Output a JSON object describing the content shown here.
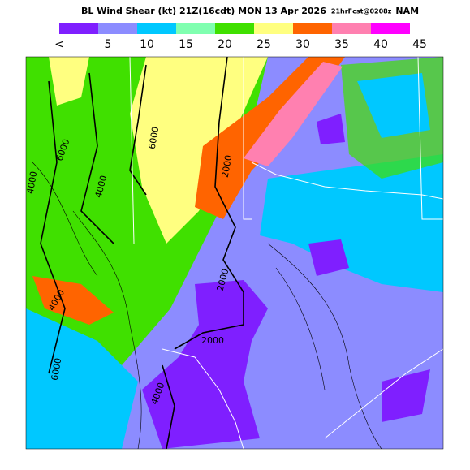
{
  "header": {
    "title": "BL Wind Shear (kt) 21Z(16cdt) MON 13 Apr 2026",
    "forecast": "21hrFcst@0208z",
    "model": "NAM"
  },
  "color_bar": {
    "colors": [
      "#7f1fff",
      "#8c8cff",
      "#00c8ff",
      "#80ffb0",
      "#40e000",
      "#ffff80",
      "#ff6400",
      "#ff80b0",
      "#ff00ff"
    ],
    "labels": [
      "<",
      "5",
      "10",
      "15",
      "20",
      "25",
      "30",
      "35",
      "40",
      "45"
    ]
  },
  "map": {
    "contour_labels": [
      "6000",
      "6000",
      "4000",
      "4000",
      "2000",
      "2000",
      "2000",
      "4000",
      "6000",
      "4000"
    ]
  }
}
